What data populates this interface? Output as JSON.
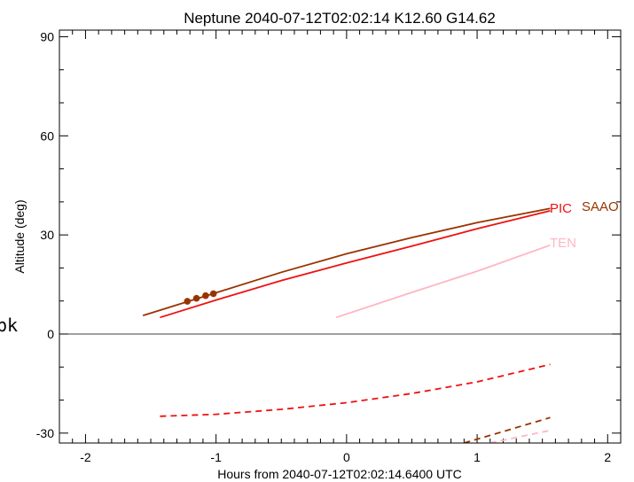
{
  "chart_data": {
    "type": "line",
    "title": "Neptune 2040-07-12T02:02:14  K12.60  G14.62",
    "xlabel": "Hours from 2040-07-12T02:02:14.6400 UTC",
    "ylabel": "Altitude (deg)",
    "xlim": [
      -2.2,
      2.1
    ],
    "ylim": [
      -33,
      92
    ],
    "xticks": [
      -2,
      -1,
      0,
      1,
      2
    ],
    "yticks": [
      -30,
      0,
      30,
      60,
      90
    ],
    "grid": false,
    "side_label": "pk",
    "zero_line": 0,
    "series": [
      {
        "name": "SAAO",
        "color": "#993300",
        "above": {
          "x": [
            -1.56,
            -1.0,
            -0.5,
            0.0,
            0.5,
            1.0,
            1.56
          ],
          "y": [
            5.6,
            12.5,
            18.7,
            24.3,
            29.2,
            33.7,
            38.0
          ]
        },
        "below": {
          "x": [
            0.9,
            1.2,
            1.56
          ],
          "y": [
            -33,
            -29.5,
            -25.3
          ]
        },
        "markers": {
          "x": [
            -1.22,
            -1.15,
            -1.08,
            -1.02
          ],
          "y": [
            9.9,
            10.8,
            11.6,
            12.2
          ]
        }
      },
      {
        "name": "PIC",
        "color": "#ee1111",
        "above": {
          "x": [
            -1.43,
            -1.0,
            -0.5,
            0.0,
            0.5,
            1.0,
            1.56
          ],
          "y": [
            5.0,
            10.3,
            16.2,
            21.5,
            26.6,
            31.9,
            37.3
          ]
        },
        "below": {
          "x": [
            -1.43,
            -1.0,
            -0.5,
            0.0,
            0.5,
            1.0,
            1.56
          ],
          "y": [
            -24.9,
            -24.3,
            -22.8,
            -20.8,
            -18.0,
            -14.5,
            -9.2
          ]
        }
      },
      {
        "name": "TEN",
        "color": "#ffb6c1",
        "above": {
          "x": [
            -0.08,
            0.5,
            1.0,
            1.56
          ],
          "y": [
            5.0,
            12.6,
            19.0,
            26.9
          ]
        },
        "below": {
          "x": [
            1.1,
            1.3,
            1.56
          ],
          "y": [
            -33,
            -31.3,
            -29.2
          ]
        }
      }
    ]
  }
}
